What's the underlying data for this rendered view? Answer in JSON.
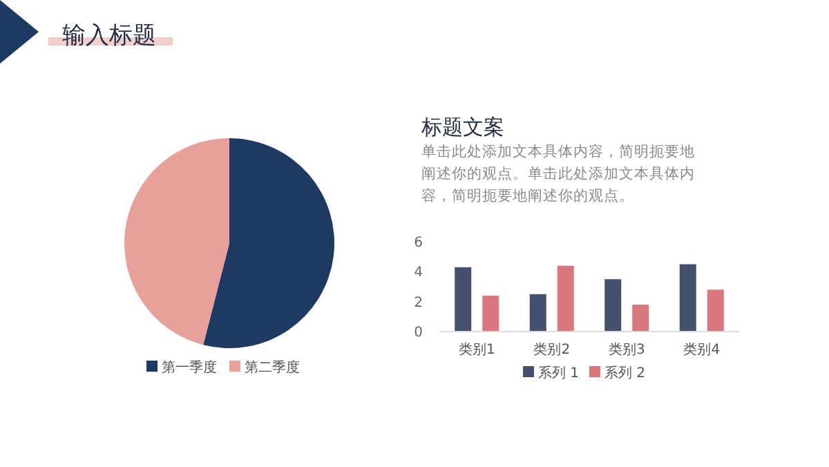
{
  "chart_data": [
    {
      "type": "other",
      "title": "输入标题"
    },
    {
      "type": "pie",
      "categories": [
        "第一季度",
        "第二季度"
      ],
      "values": [
        54,
        46
      ],
      "colors": [
        "#1f3a62",
        "#e8a09a"
      ],
      "legend": "bottom"
    },
    {
      "type": "other",
      "title": "标题文案",
      "annotations": [
        "单击此处添加文本具体内容，简明扼要地阐述你的观点。单击此处添加文本具体内容，简明扼要地阐述你的观点。"
      ]
    },
    {
      "type": "bar",
      "categories": [
        "类别1",
        "类别2",
        "类别3",
        "类别4"
      ],
      "series": [
        {
          "name": "系列 1",
          "color": "#45506f",
          "values": [
            4.3,
            2.5,
            3.5,
            4.5
          ]
        },
        {
          "name": "系列 2",
          "color": "#d9777c",
          "values": [
            2.4,
            4.4,
            1.8,
            2.8
          ]
        }
      ],
      "ylim": [
        0,
        6
      ],
      "yticks": [
        0,
        2,
        4,
        6
      ],
      "grid": false,
      "legend": "bottom"
    }
  ]
}
